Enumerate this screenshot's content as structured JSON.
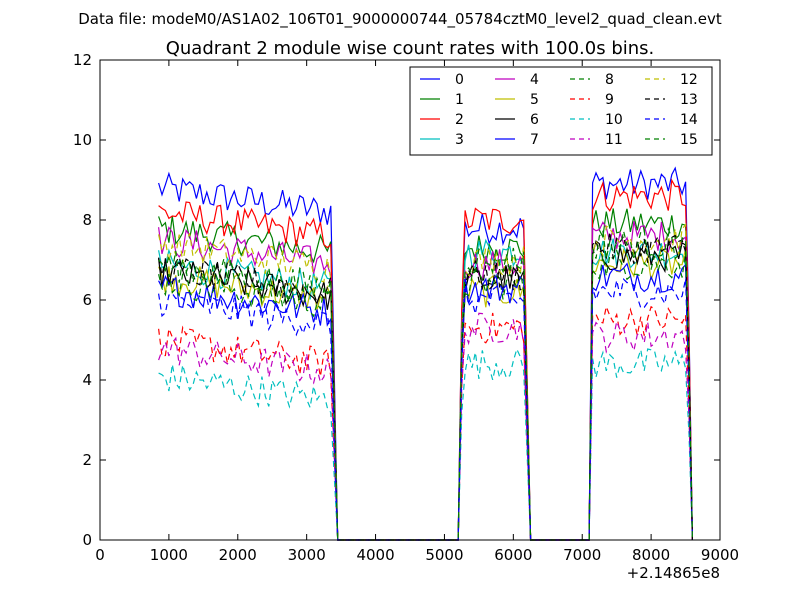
{
  "header": {
    "supertitle": "Data file: modeM0/AS1A02_106T01_9000000744_05784cztM0_level2_quad_clean.evt",
    "title": "Quadrant 2 module wise count rates with 100.0s bins."
  },
  "x_offset_label": "+2.14865e8",
  "chart_data": {
    "type": "line",
    "title": "Quadrant 2 module wise count rates with 100.0s bins.",
    "xlabel": "",
    "ylabel": "",
    "xlim": [
      0,
      9000
    ],
    "ylim": [
      0,
      12
    ],
    "xticks": [
      0,
      1000,
      2000,
      3000,
      4000,
      5000,
      6000,
      7000,
      8000,
      9000
    ],
    "yticks": [
      0,
      2,
      4,
      6,
      8,
      10,
      12
    ],
    "x_offset": "+2.14865e8",
    "grid": false,
    "legend_position": "top-right",
    "segments": [
      {
        "start": 850,
        "end": 3350,
        "drop_to": 3450
      },
      {
        "start": 5250,
        "end": 6150,
        "drop_to": 6250
      },
      {
        "start": 7150,
        "end": 8550,
        "drop_to": 8600
      }
    ],
    "gaps_zero_range": [
      [
        3450,
        5250
      ],
      [
        6250,
        7050
      ]
    ],
    "series": [
      {
        "name": "0",
        "color": "#0000ff",
        "dash": "solid",
        "levels": [
          8.8,
          7.8,
          8.9
        ]
      },
      {
        "name": "1",
        "color": "#008000",
        "dash": "solid",
        "levels": [
          7.8,
          7.3,
          7.9
        ]
      },
      {
        "name": "2",
        "color": "#ff0000",
        "dash": "solid",
        "levels": [
          8.2,
          8.0,
          8.6
        ]
      },
      {
        "name": "3",
        "color": "#00bfbf",
        "dash": "solid",
        "levels": [
          6.9,
          7.2,
          7.2
        ]
      },
      {
        "name": "4",
        "color": "#bf00bf",
        "dash": "solid",
        "levels": [
          7.5,
          6.9,
          7.6
        ]
      },
      {
        "name": "5",
        "color": "#bfbf00",
        "dash": "solid",
        "levels": [
          6.6,
          6.2,
          6.9
        ]
      },
      {
        "name": "6",
        "color": "#000000",
        "dash": "solid",
        "levels": [
          6.7,
          6.5,
          7.1
        ]
      },
      {
        "name": "7",
        "color": "#0000ff",
        "dash": "solid",
        "levels": [
          6.3,
          6.3,
          6.6
        ]
      },
      {
        "name": "8",
        "color": "#008000",
        "dash": "dashed",
        "levels": [
          6.5,
          6.4,
          6.9
        ]
      },
      {
        "name": "9",
        "color": "#ff0000",
        "dash": "dashed",
        "levels": [
          5.0,
          5.3,
          5.5
        ]
      },
      {
        "name": "10",
        "color": "#00bfbf",
        "dash": "dashed",
        "levels": [
          4.1,
          4.4,
          4.4
        ]
      },
      {
        "name": "11",
        "color": "#bf00bf",
        "dash": "dashed",
        "levels": [
          4.8,
          5.3,
          5.1
        ]
      },
      {
        "name": "12",
        "color": "#bfbf00",
        "dash": "dashed",
        "levels": [
          7.4,
          7.0,
          7.5
        ]
      },
      {
        "name": "13",
        "color": "#000000",
        "dash": "dashed",
        "levels": [
          6.8,
          6.6,
          7.3
        ]
      },
      {
        "name": "14",
        "color": "#0000ff",
        "dash": "dashed",
        "levels": [
          6.0,
          6.0,
          6.2
        ]
      },
      {
        "name": "15",
        "color": "#008000",
        "dash": "dashed",
        "levels": [
          6.9,
          7.0,
          7.4
        ]
      }
    ]
  }
}
